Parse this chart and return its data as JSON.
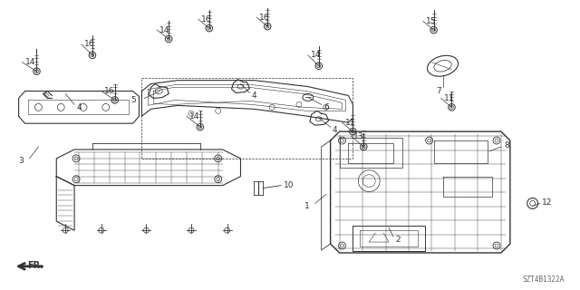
{
  "bg_color": "#ffffff",
  "line_color": "#333333",
  "diagram_ref": "SZT4B1322A",
  "figsize": [
    6.4,
    3.2
  ],
  "dpi": 100
}
